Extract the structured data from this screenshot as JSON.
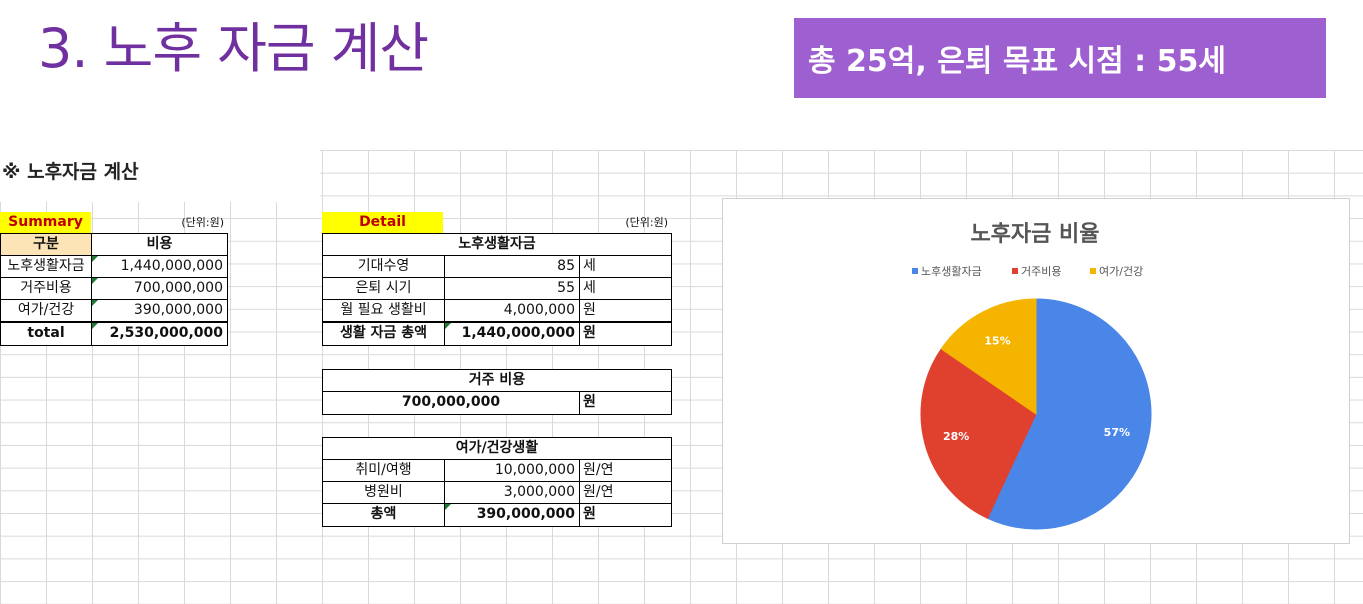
{
  "slide": {
    "title": "3. 노후 자금 계산",
    "banner": "총 25억, 은퇴 목표 시점 : 55세"
  },
  "sheet": {
    "section_title": "※ 노후자금 계산",
    "summary": {
      "label": "Summary",
      "unit": "(단위:원)",
      "headers": [
        "구분",
        "비용"
      ],
      "rows": [
        {
          "name": "노후생활자금",
          "value": "1,440,000,000"
        },
        {
          "name": "거주비용",
          "value": "700,000,000"
        },
        {
          "name": "여가/건강",
          "value": "390,000,000"
        }
      ],
      "total": {
        "name": "total",
        "value": "2,530,000,000"
      }
    },
    "detail": {
      "label": "Detail",
      "unit": "(단위:원)",
      "living": {
        "title": "노후생활자금",
        "rows": [
          {
            "name": "기대수영",
            "value": "85",
            "unit": "세"
          },
          {
            "name": "은퇴 시기",
            "value": "55",
            "unit": "세"
          },
          {
            "name": "월 필요 생활비",
            "value": "4,000,000",
            "unit": "원"
          }
        ],
        "total": {
          "name": "생활 자금 총액",
          "value": "1,440,000,000",
          "unit": "원"
        }
      },
      "housing": {
        "title": "거주 비용",
        "value": "700,000,000",
        "unit": "원"
      },
      "leisure": {
        "title": "여가/건강생활",
        "rows": [
          {
            "name": "취미/여행",
            "value": "10,000,000",
            "unit": "원/연"
          },
          {
            "name": "병원비",
            "value": "3,000,000",
            "unit": "원/연"
          }
        ],
        "total": {
          "name": "총액",
          "value": "390,000,000",
          "unit": "원"
        }
      }
    }
  },
  "chart_data": {
    "type": "pie",
    "title": "노후자금 비율",
    "legend_position": "top",
    "categories": [
      "노후생활자금",
      "거주비용",
      "여가/건강"
    ],
    "values": [
      1440000000,
      700000000,
      390000000
    ],
    "labels": [
      "57%",
      "28%",
      "15%"
    ],
    "colors": [
      "#4a86e8",
      "#e0412f",
      "#f4b400"
    ]
  }
}
